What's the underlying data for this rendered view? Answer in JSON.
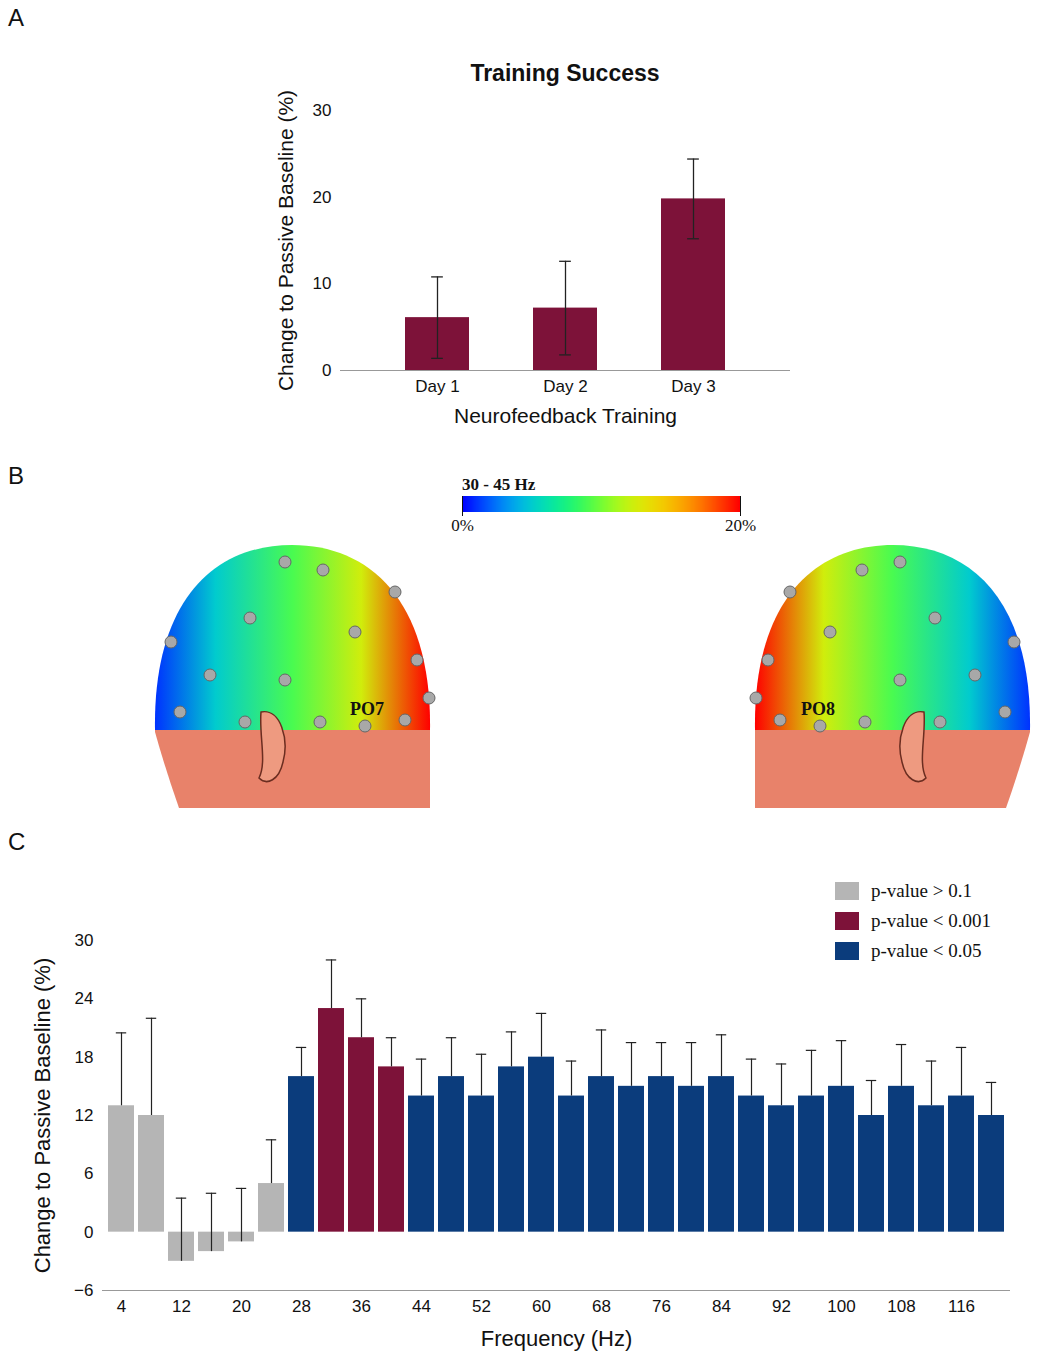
{
  "chart_data": [
    {
      "panel": "A",
      "type": "bar",
      "title": "Training Success",
      "x_label": "Neurofeedback Training",
      "y_label": "Change to Passive Baseline (%)",
      "categories": [
        "Day 1",
        "Day 2",
        "Day 3"
      ],
      "values": [
        6.1,
        7.2,
        19.8
      ],
      "errors": [
        4.7,
        5.4,
        4.6
      ],
      "color": "#7d1239",
      "ylim": [
        0,
        30
      ],
      "yticks": [
        0,
        10,
        20,
        30
      ],
      "grid": false
    },
    {
      "panel": "B",
      "type": "topomap",
      "colorbar": {
        "label": "30 - 45 Hz",
        "range": [
          0,
          20
        ],
        "ticks": [
          {
            "value": 0,
            "label": "0%"
          },
          {
            "value": 20,
            "label": "20%"
          }
        ]
      },
      "electrodes": [
        {
          "label": "PO7",
          "value": 20
        },
        {
          "label": "PO8",
          "value": 20
        }
      ]
    },
    {
      "panel": "C",
      "type": "bar",
      "x_label": "Frequency (Hz)",
      "y_label": "Change to Passive Baseline (%)",
      "categories": [
        4,
        8,
        12,
        16,
        20,
        24,
        28,
        32,
        36,
        40,
        44,
        48,
        52,
        56,
        60,
        64,
        68,
        72,
        76,
        80,
        84,
        88,
        92,
        96,
        100,
        104,
        108,
        112,
        116,
        120
      ],
      "xticks": [
        4,
        12,
        20,
        28,
        36,
        44,
        52,
        60,
        68,
        76,
        84,
        92,
        100,
        108,
        116
      ],
      "series": [
        {
          "name": "p-value > 0.1",
          "color": "#b5b5b5",
          "values": [
            13,
            12,
            -3,
            -2,
            -1,
            5,
            null,
            null,
            null,
            null,
            null,
            null,
            null,
            null,
            null,
            null,
            null,
            null,
            null,
            null,
            null,
            null,
            null,
            null,
            null,
            null,
            null,
            null,
            null,
            null
          ],
          "errors": [
            7.5,
            10,
            6.5,
            6,
            5.5,
            4.5,
            null,
            null,
            null,
            null,
            null,
            null,
            null,
            null,
            null,
            null,
            null,
            null,
            null,
            null,
            null,
            null,
            null,
            null,
            null,
            null,
            null,
            null,
            null,
            null
          ]
        },
        {
          "name": "p-value < 0.001",
          "color": "#7d1239",
          "values": [
            null,
            null,
            null,
            null,
            null,
            null,
            null,
            23,
            20,
            17,
            null,
            null,
            null,
            null,
            null,
            null,
            null,
            null,
            null,
            null,
            null,
            null,
            null,
            null,
            null,
            null,
            null,
            null,
            null,
            null
          ],
          "errors": [
            null,
            null,
            null,
            null,
            null,
            null,
            null,
            5,
            4,
            3,
            null,
            null,
            null,
            null,
            null,
            null,
            null,
            null,
            null,
            null,
            null,
            null,
            null,
            null,
            null,
            null,
            null,
            null,
            null,
            null
          ]
        },
        {
          "name": "p-value < 0.05",
          "color": "#0b3c7c",
          "values": [
            null,
            null,
            null,
            null,
            null,
            null,
            16,
            null,
            null,
            null,
            14,
            16,
            14,
            17,
            18,
            14,
            16,
            15,
            16,
            15,
            16,
            14,
            13,
            14,
            15,
            12,
            15,
            13,
            14,
            12
          ],
          "errors": [
            null,
            null,
            null,
            null,
            null,
            null,
            3,
            null,
            null,
            null,
            3.8,
            4,
            4.3,
            3.6,
            4.5,
            3.6,
            4.8,
            4.5,
            3.5,
            4.5,
            4.3,
            3.8,
            4.3,
            4.7,
            4.7,
            3.6,
            4.3,
            4.6,
            5,
            3.4
          ]
        }
      ],
      "ylim": [
        -6,
        30
      ],
      "yticks": [
        -6,
        0,
        6,
        12,
        18,
        24,
        30
      ],
      "legend": "top-right",
      "grid": false
    }
  ]
}
